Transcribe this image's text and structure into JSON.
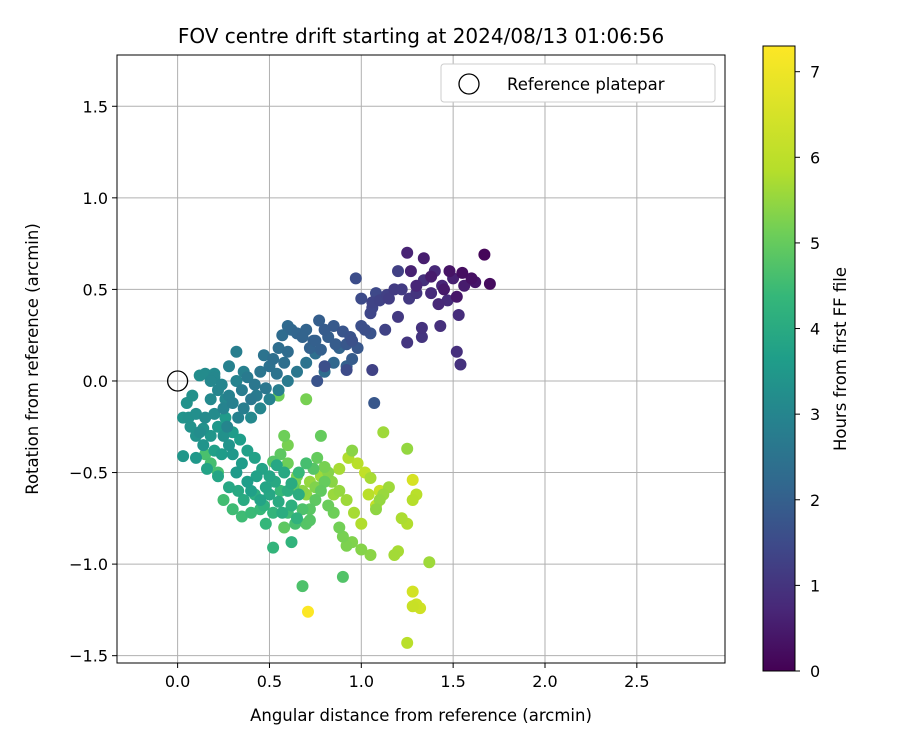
{
  "chart_data": {
    "type": "scatter",
    "title": "FOV centre drift starting at 2024/08/13 01:06:56",
    "xlabel": "Angular distance from reference (arcmin)",
    "ylabel": "Rotation from reference (arcmin)",
    "xlim": [
      -0.33,
      2.98
    ],
    "ylim": [
      -1.54,
      1.78
    ],
    "xticks": [
      0.0,
      0.5,
      1.0,
      1.5,
      2.0,
      2.5
    ],
    "xtick_labels": [
      "0.0",
      "0.5",
      "1.0",
      "1.5",
      "2.0",
      "2.5"
    ],
    "yticks": [
      -1.5,
      -1.0,
      -0.5,
      0.0,
      0.5,
      1.0,
      1.5
    ],
    "ytick_labels": [
      "−1.5",
      "−1.0",
      "−0.5",
      "0.0",
      "0.5",
      "1.0",
      "1.5"
    ],
    "grid": true,
    "legend": {
      "position": "top-right",
      "entries": [
        {
          "label": "Reference platepar",
          "marker": "open-circle"
        }
      ]
    },
    "reference_point": {
      "x": 0.0,
      "y": 0.0
    },
    "colorbar": {
      "label": "Hours from first FF file",
      "colormap": "viridis",
      "min": 0,
      "max": 7.3,
      "ticks": [
        0,
        1,
        2,
        3,
        4,
        5,
        6,
        7
      ],
      "tick_labels": [
        "0",
        "1",
        "2",
        "3",
        "4",
        "5",
        "6",
        "7"
      ]
    },
    "points": [
      [
        1.67,
        0.69,
        0.1
      ],
      [
        1.7,
        0.53,
        0.2
      ],
      [
        1.55,
        0.59,
        0.25
      ],
      [
        1.6,
        0.56,
        0.3
      ],
      [
        1.48,
        0.6,
        0.35
      ],
      [
        1.52,
        0.46,
        0.4
      ],
      [
        1.45,
        0.5,
        0.45
      ],
      [
        1.38,
        0.57,
        0.5
      ],
      [
        1.34,
        0.67,
        0.55
      ],
      [
        1.27,
        0.6,
        0.6
      ],
      [
        1.25,
        0.7,
        0.65
      ],
      [
        1.3,
        0.52,
        0.7
      ],
      [
        1.42,
        0.42,
        0.75
      ],
      [
        1.47,
        0.44,
        0.8
      ],
      [
        1.53,
        0.36,
        0.85
      ],
      [
        1.43,
        0.3,
        0.9
      ],
      [
        1.33,
        0.29,
        0.95
      ],
      [
        1.33,
        0.24,
        1.0
      ],
      [
        1.25,
        0.21,
        1.05
      ],
      [
        1.2,
        0.35,
        1.1
      ],
      [
        1.52,
        0.16,
        0.9
      ],
      [
        1.54,
        0.09,
        0.95
      ],
      [
        1.18,
        0.5,
        1.15
      ],
      [
        1.15,
        0.45,
        1.2
      ],
      [
        1.2,
        0.6,
        1.25
      ],
      [
        1.13,
        0.28,
        1.3
      ],
      [
        1.06,
        0.43,
        1.35
      ],
      [
        1.05,
        0.37,
        1.4
      ],
      [
        1.08,
        0.48,
        1.45
      ],
      [
        1.0,
        0.45,
        1.5
      ],
      [
        0.97,
        0.56,
        1.55
      ],
      [
        1.0,
        0.3,
        1.6
      ],
      [
        0.95,
        0.22,
        1.65
      ],
      [
        1.05,
        0.26,
        1.7
      ],
      [
        0.9,
        0.27,
        1.75
      ],
      [
        0.92,
        0.2,
        1.8
      ],
      [
        0.85,
        0.3,
        1.85
      ],
      [
        0.8,
        0.28,
        1.9
      ],
      [
        0.77,
        0.33,
        1.95
      ],
      [
        0.75,
        0.22,
        2.0
      ],
      [
        0.72,
        0.18,
        2.05
      ],
      [
        0.68,
        0.24,
        2.1
      ],
      [
        0.65,
        0.26,
        2.15
      ],
      [
        0.62,
        0.28,
        2.2
      ],
      [
        0.6,
        0.3,
        2.25
      ],
      [
        0.57,
        0.25,
        2.3
      ],
      [
        0.55,
        0.18,
        2.35
      ],
      [
        0.52,
        0.12,
        2.4
      ],
      [
        0.5,
        0.08,
        2.45
      ],
      [
        0.47,
        0.14,
        2.5
      ],
      [
        0.45,
        0.05,
        2.55
      ],
      [
        0.42,
        -0.02,
        2.6
      ],
      [
        0.4,
        -0.1,
        2.65
      ],
      [
        0.38,
        0.02,
        2.7
      ],
      [
        0.35,
        -0.05,
        2.75
      ],
      [
        0.32,
        0.16,
        2.8
      ],
      [
        0.3,
        -0.12,
        2.85
      ],
      [
        0.28,
        -0.08,
        2.9
      ],
      [
        0.25,
        -0.15,
        2.95
      ],
      [
        0.22,
        -0.05,
        3.0
      ],
      [
        0.2,
        0.02,
        3.05
      ],
      [
        0.18,
        -0.1,
        3.1
      ],
      [
        0.15,
        -0.2,
        3.15
      ],
      [
        0.12,
        -0.28,
        3.2
      ],
      [
        0.1,
        -0.18,
        3.25
      ],
      [
        0.08,
        -0.08,
        3.3
      ],
      [
        0.05,
        -0.12,
        3.35
      ],
      [
        0.03,
        -0.2,
        3.4
      ],
      [
        0.03,
        -0.41,
        3.45
      ],
      [
        0.12,
        0.03,
        3.2
      ],
      [
        0.15,
        0.04,
        3.15
      ],
      [
        0.2,
        0.04,
        3.1
      ],
      [
        0.25,
        -0.3,
        3.3
      ],
      [
        0.28,
        -0.35,
        3.4
      ],
      [
        0.3,
        -0.4,
        3.5
      ],
      [
        0.32,
        -0.5,
        3.55
      ],
      [
        0.35,
        -0.45,
        3.6
      ],
      [
        0.38,
        -0.55,
        3.65
      ],
      [
        0.4,
        -0.6,
        3.7
      ],
      [
        0.43,
        -0.52,
        3.75
      ],
      [
        0.45,
        -0.65,
        3.8
      ],
      [
        0.48,
        -0.58,
        3.85
      ],
      [
        0.5,
        -0.62,
        3.9
      ],
      [
        0.53,
        -0.55,
        3.95
      ],
      [
        0.55,
        -0.66,
        4.0
      ],
      [
        0.57,
        -0.72,
        4.05
      ],
      [
        0.6,
        -0.6,
        4.1
      ],
      [
        0.62,
        -0.68,
        4.15
      ],
      [
        0.65,
        -0.75,
        4.2
      ],
      [
        0.62,
        -0.88,
        4.25
      ],
      [
        0.52,
        -0.91,
        4.3
      ],
      [
        0.48,
        -0.78,
        4.35
      ],
      [
        0.45,
        -0.7,
        4.4
      ],
      [
        0.4,
        -0.72,
        4.45
      ],
      [
        0.35,
        -0.74,
        4.5
      ],
      [
        0.3,
        -0.7,
        4.5
      ],
      [
        0.25,
        -0.65,
        4.55
      ],
      [
        0.22,
        -0.5,
        4.6
      ],
      [
        0.18,
        -0.45,
        4.6
      ],
      [
        0.15,
        -0.4,
        4.65
      ],
      [
        0.68,
        -1.12,
        4.7
      ],
      [
        0.9,
        -1.07,
        4.75
      ],
      [
        0.7,
        -0.78,
        4.8
      ],
      [
        0.72,
        -0.7,
        4.85
      ],
      [
        0.75,
        -0.65,
        4.9
      ],
      [
        0.78,
        -0.6,
        4.95
      ],
      [
        0.8,
        -0.55,
        5.0
      ],
      [
        0.82,
        -0.68,
        5.05
      ],
      [
        0.85,
        -0.72,
        5.1
      ],
      [
        0.88,
        -0.8,
        5.15
      ],
      [
        0.9,
        -0.85,
        5.2
      ],
      [
        0.92,
        -0.9,
        5.25
      ],
      [
        0.95,
        -0.88,
        5.3
      ],
      [
        1.0,
        -0.92,
        5.35
      ],
      [
        1.05,
        -0.95,
        5.4
      ],
      [
        1.08,
        -0.7,
        5.45
      ],
      [
        1.1,
        -0.65,
        5.5
      ],
      [
        1.12,
        -0.62,
        5.55
      ],
      [
        1.15,
        -0.58,
        5.6
      ],
      [
        1.18,
        -0.95,
        5.65
      ],
      [
        1.2,
        -0.93,
        5.7
      ],
      [
        1.22,
        -0.75,
        5.75
      ],
      [
        1.25,
        -0.78,
        5.8
      ],
      [
        1.28,
        -0.65,
        5.85
      ],
      [
        1.3,
        -0.62,
        5.9
      ],
      [
        1.37,
        -0.99,
        5.6
      ],
      [
        1.25,
        -1.43,
        5.9
      ],
      [
        1.28,
        -1.23,
        6.1
      ],
      [
        1.3,
        -1.22,
        6.15
      ],
      [
        1.32,
        -1.24,
        6.2
      ],
      [
        1.28,
        -1.15,
        6.25
      ],
      [
        1.28,
        -0.54,
        6.3
      ],
      [
        1.05,
        -0.53,
        5.7
      ],
      [
        1.12,
        -0.28,
        5.6
      ],
      [
        1.25,
        -0.37,
        5.5
      ],
      [
        0.95,
        -0.38,
        5.4
      ],
      [
        0.7,
        -0.1,
        5.2
      ],
      [
        0.55,
        -0.08,
        5.1
      ],
      [
        0.78,
        -0.3,
        5.0
      ],
      [
        0.6,
        -0.45,
        5.1
      ],
      [
        0.65,
        -0.52,
        5.2
      ],
      [
        0.75,
        -0.58,
        5.3
      ],
      [
        0.82,
        -0.5,
        5.35
      ],
      [
        0.7,
        -0.62,
        5.45
      ],
      [
        0.85,
        -0.62,
        5.55
      ],
      [
        0.71,
        -1.26,
        7.25
      ],
      [
        0.06,
        -0.2,
        3.3
      ],
      [
        0.1,
        -0.3,
        3.35
      ],
      [
        0.14,
        -0.35,
        3.4
      ],
      [
        0.18,
        -0.3,
        3.45
      ],
      [
        0.22,
        -0.25,
        3.5
      ],
      [
        0.26,
        -0.2,
        3.55
      ],
      [
        0.3,
        -0.28,
        3.6
      ],
      [
        0.34,
        -0.32,
        3.65
      ],
      [
        0.38,
        -0.38,
        3.7
      ],
      [
        0.42,
        -0.42,
        3.75
      ],
      [
        0.46,
        -0.48,
        3.8
      ],
      [
        0.5,
        -0.52,
        3.85
      ],
      [
        0.54,
        -0.46,
        3.9
      ],
      [
        0.58,
        -0.5,
        3.95
      ],
      [
        0.62,
        -0.56,
        4.0
      ],
      [
        0.66,
        -0.62,
        4.05
      ],
      [
        0.4,
        -0.2,
        3.1
      ],
      [
        0.45,
        -0.15,
        3.0
      ],
      [
        0.5,
        -0.1,
        2.9
      ],
      [
        0.55,
        -0.05,
        2.8
      ],
      [
        0.6,
        0.0,
        2.7
      ],
      [
        0.65,
        0.05,
        2.6
      ],
      [
        0.7,
        0.1,
        2.5
      ],
      [
        0.75,
        0.15,
        2.4
      ],
      [
        0.8,
        0.05,
        2.3
      ],
      [
        0.85,
        0.1,
        2.2
      ],
      [
        0.88,
        0.18,
        2.1
      ],
      [
        0.92,
        0.08,
        2.0
      ],
      [
        0.95,
        0.12,
        1.9
      ],
      [
        0.98,
        0.18,
        1.8
      ],
      [
        0.6,
        0.16,
        2.3
      ],
      [
        0.58,
        0.1,
        2.4
      ],
      [
        0.54,
        0.04,
        2.5
      ],
      [
        0.48,
        -0.04,
        2.6
      ],
      [
        0.43,
        -0.08,
        2.7
      ],
      [
        0.36,
        -0.15,
        2.8
      ],
      [
        0.33,
        -0.2,
        2.9
      ],
      [
        0.27,
        -0.25,
        3.0
      ],
      [
        0.24,
        -0.4,
        3.6
      ],
      [
        0.2,
        -0.38,
        3.7
      ],
      [
        0.16,
        -0.48,
        3.8
      ],
      [
        0.22,
        -0.52,
        3.85
      ],
      [
        0.28,
        -0.58,
        3.9
      ],
      [
        0.33,
        -0.6,
        3.95
      ],
      [
        0.36,
        -0.65,
        4.0
      ],
      [
        0.42,
        -0.62,
        4.1
      ],
      [
        0.47,
        -0.68,
        4.2
      ],
      [
        0.52,
        -0.72,
        4.3
      ],
      [
        0.56,
        -0.6,
        4.4
      ],
      [
        0.6,
        -0.72,
        4.5
      ],
      [
        0.64,
        -0.78,
        4.6
      ],
      [
        0.68,
        -0.7,
        4.7
      ],
      [
        0.72,
        -0.76,
        4.8
      ],
      [
        0.58,
        -0.8,
        4.9
      ],
      [
        0.63,
        -0.58,
        4.95
      ],
      [
        0.66,
        -0.5,
        4.4
      ],
      [
        0.7,
        -0.45,
        4.6
      ],
      [
        0.74,
        -0.48,
        4.8
      ],
      [
        0.76,
        -0.42,
        5.0
      ],
      [
        0.8,
        -0.47,
        5.2
      ],
      [
        0.84,
        -0.55,
        5.4
      ],
      [
        0.88,
        -0.6,
        5.5
      ],
      [
        0.92,
        -0.65,
        5.6
      ],
      [
        0.96,
        -0.72,
        5.7
      ],
      [
        1.0,
        -0.78,
        5.8
      ],
      [
        1.04,
        -0.62,
        5.9
      ],
      [
        1.08,
        -0.68,
        6.0
      ],
      [
        1.1,
        -0.6,
        6.1
      ],
      [
        1.02,
        -0.5,
        6.0
      ],
      [
        0.98,
        -0.45,
        5.9
      ],
      [
        0.93,
        -0.42,
        5.8
      ],
      [
        0.88,
        -0.48,
        5.7
      ],
      [
        0.78,
        -0.52,
        5.6
      ],
      [
        0.72,
        -0.55,
        5.5
      ],
      [
        0.68,
        -0.6,
        5.4
      ],
      [
        0.64,
        -0.55,
        5.3
      ],
      [
        0.6,
        -0.35,
        5.2
      ],
      [
        0.58,
        -0.3,
        5.1
      ],
      [
        0.56,
        -0.4,
        4.9
      ],
      [
        0.52,
        -0.44,
        4.8
      ],
      [
        0.18,
        0.0,
        3.05
      ],
      [
        0.24,
        -0.02,
        3.0
      ],
      [
        0.32,
        0.0,
        2.95
      ],
      [
        0.36,
        0.05,
        2.85
      ],
      [
        0.28,
        0.08,
        2.9
      ],
      [
        0.1,
        -0.42,
        3.5
      ],
      [
        0.14,
        -0.26,
        3.3
      ],
      [
        0.07,
        -0.25,
        3.35
      ],
      [
        0.2,
        -0.18,
        3.15
      ],
      [
        0.26,
        -0.1,
        3.05
      ],
      [
        0.7,
        0.28,
        2.1
      ],
      [
        0.74,
        0.22,
        2.05
      ],
      [
        0.78,
        0.17,
        2.0
      ],
      [
        0.82,
        0.24,
        1.95
      ],
      [
        0.86,
        0.2,
        1.9
      ],
      [
        0.94,
        0.24,
        1.7
      ],
      [
        1.02,
        0.28,
        1.6
      ],
      [
        1.06,
        0.4,
        1.4
      ],
      [
        1.1,
        0.44,
        1.3
      ],
      [
        1.14,
        0.47,
        1.25
      ],
      [
        1.22,
        0.5,
        1.15
      ],
      [
        1.26,
        0.45,
        1.1
      ],
      [
        1.3,
        0.48,
        1.0
      ],
      [
        1.34,
        0.55,
        0.9
      ],
      [
        1.38,
        0.48,
        0.8
      ],
      [
        1.4,
        0.6,
        0.75
      ],
      [
        1.44,
        0.52,
        0.7
      ],
      [
        1.5,
        0.56,
        0.6
      ],
      [
        1.56,
        0.52,
        0.5
      ],
      [
        1.62,
        0.54,
        0.4
      ],
      [
        1.06,
        0.06,
        1.3
      ],
      [
        1.07,
        -0.12,
        1.8
      ],
      [
        0.92,
        0.06,
        1.5
      ],
      [
        0.8,
        0.08,
        1.6
      ],
      [
        0.76,
        0.0,
        1.7
      ]
    ]
  }
}
